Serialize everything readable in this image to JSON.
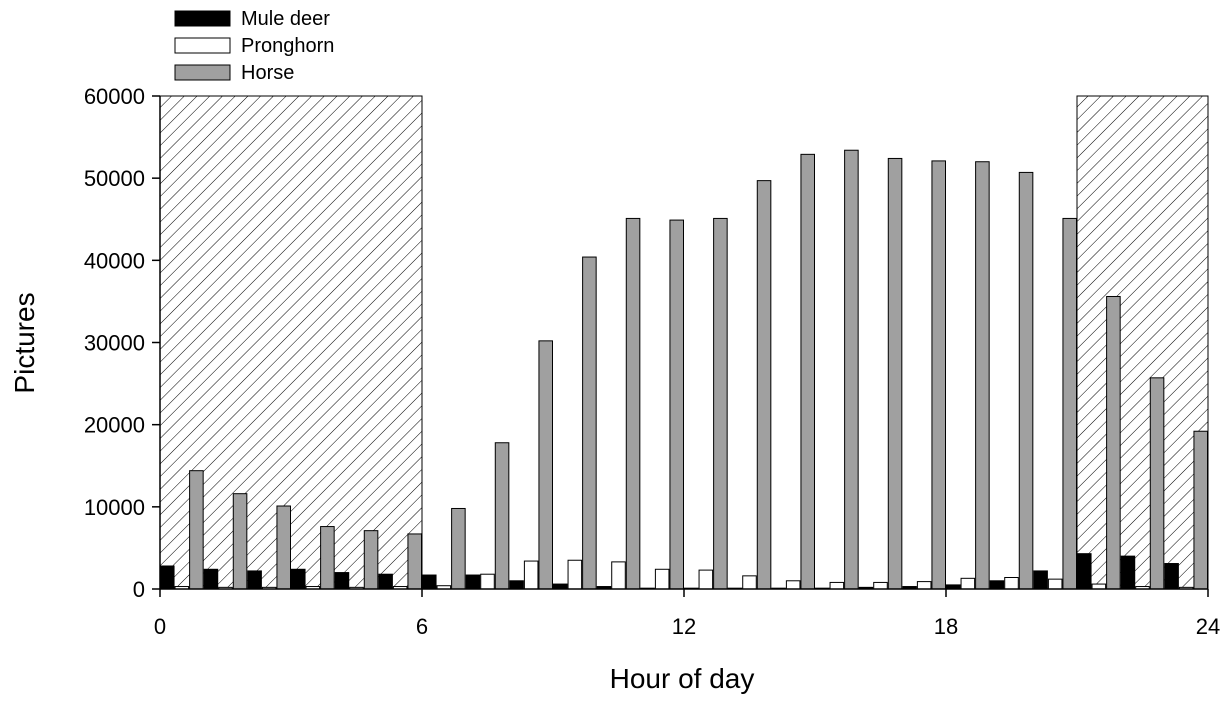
{
  "chart_data": {
    "type": "bar",
    "title": "",
    "xlabel": "Hour of day",
    "ylabel": "Pictures",
    "xlim": [
      0,
      24
    ],
    "ylim": [
      0,
      60000
    ],
    "xticks": [
      "0",
      "6",
      "12",
      "18",
      "24"
    ],
    "yticks": [
      "0",
      "10000",
      "20000",
      "30000",
      "40000",
      "50000",
      "60000"
    ],
    "grid": false,
    "legend_position": "top-left, above plot",
    "night_shading": [
      [
        0,
        6
      ],
      [
        21,
        24
      ]
    ],
    "categories": [
      0,
      1,
      2,
      3,
      4,
      5,
      6,
      7,
      8,
      9,
      10,
      11,
      12,
      13,
      14,
      15,
      16,
      17,
      18,
      19,
      20,
      21,
      22,
      23
    ],
    "series": [
      {
        "name": "Mule deer",
        "color": "#000000",
        "values": [
          2800,
          2400,
          2200,
          2400,
          2000,
          1800,
          1700,
          1700,
          1000,
          600,
          300,
          100,
          100,
          100,
          100,
          100,
          200,
          300,
          500,
          1000,
          2200,
          4300,
          4000,
          3100
        ]
      },
      {
        "name": "Pronghorn",
        "color": "#ffffff",
        "values": [
          300,
          200,
          200,
          300,
          200,
          300,
          400,
          1800,
          3400,
          3500,
          3300,
          2400,
          2300,
          1600,
          1000,
          800,
          800,
          900,
          1300,
          1400,
          1200,
          600,
          300,
          200
        ]
      },
      {
        "name": "Horse",
        "color": "#a0a0a0",
        "values": [
          14400,
          11600,
          10100,
          7600,
          7100,
          6700,
          9800,
          17800,
          30200,
          40400,
          45100,
          44900,
          45100,
          49700,
          52900,
          53400,
          52400,
          52100,
          52000,
          50700,
          45100,
          35600,
          25700,
          19200
        ]
      }
    ]
  }
}
